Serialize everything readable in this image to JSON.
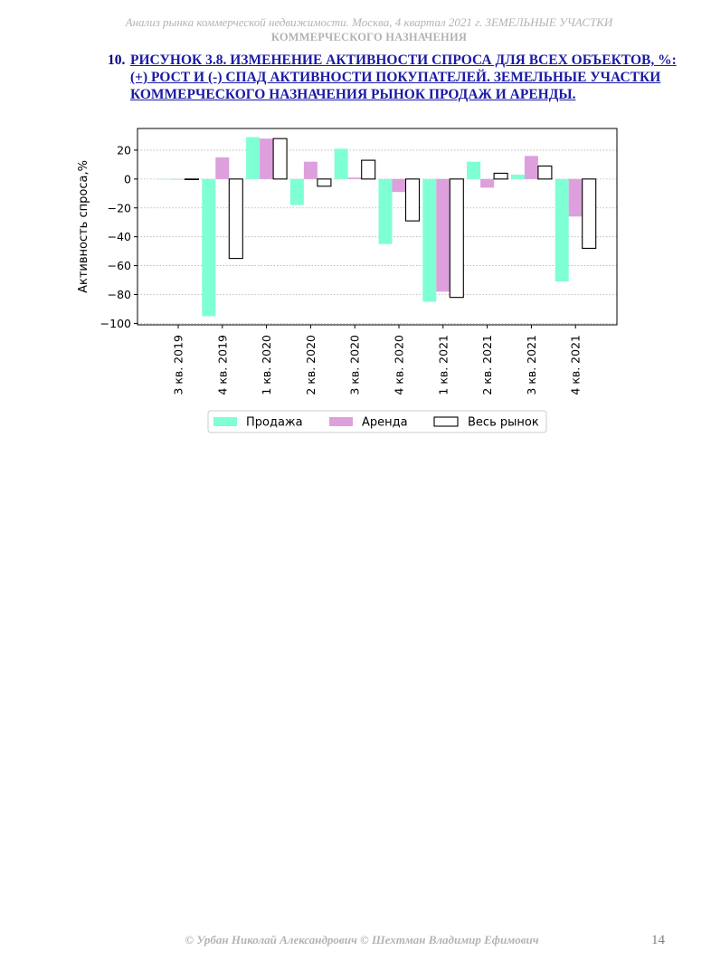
{
  "header": {
    "line1": "Анализ рынка коммерческой недвижимости.  Москва, 4 квартал 2021 г.  ЗЕМЕЛЬНЫЕ УЧАСТКИ",
    "line2": "КОММЕРЧЕСКОГО НАЗНАЧЕНИЯ"
  },
  "figure": {
    "number": "10.",
    "title": "РИСУНОК 3.8. ИЗМЕНЕНИЕ АКТИВНОСТИ СПРОСА ДЛЯ ВСЕХ ОБЪЕКТОВ, %: (+) РОСТ И (-) СПАД АКТИВНОСТИ ПОКУПАТЕЛЕЙ. ЗЕМЕЛЬНЫЕ УЧАСТКИ КОММЕРЧЕСКОГО НАЗНАЧЕНИЯ РЫНОК ПРОДАЖ И АРЕНДЫ."
  },
  "chart_data": {
    "type": "bar",
    "categories": [
      "3 кв. 2019",
      "4 кв. 2019",
      "1 кв. 2020",
      "2 кв. 2020",
      "3 кв. 2020",
      "4 кв. 2020",
      "1 кв. 2021",
      "2 кв. 2021",
      "3 кв. 2021",
      "4 кв. 2021"
    ],
    "series": [
      {
        "name": "Продажа",
        "color": "#7fffd4",
        "values": [
          0,
          -95,
          29,
          -18,
          21,
          -45,
          -85,
          12,
          3,
          -71
        ]
      },
      {
        "name": "Аренда",
        "color": "#dda0dd",
        "values": [
          0,
          15,
          28,
          12,
          1,
          -9,
          -78,
          -6,
          16,
          -26
        ]
      },
      {
        "name": "Весь рынок",
        "color": "#ffffff",
        "edge": "#000000",
        "values": [
          0,
          -55,
          28,
          -5,
          13,
          -29,
          -82,
          4,
          9,
          -48
        ]
      }
    ],
    "ylabel": "Активность спроса,%",
    "ylim": [
      -101,
      35
    ],
    "yticks": [
      20,
      0,
      -20,
      -40,
      -60,
      -80,
      -100
    ],
    "grid": "horizontal dotted",
    "legend": "bottom-center"
  },
  "footer": {
    "copyright": "© Урбан Николай Александрович   © Шехтман Владимир Ефимович",
    "page": "14"
  }
}
